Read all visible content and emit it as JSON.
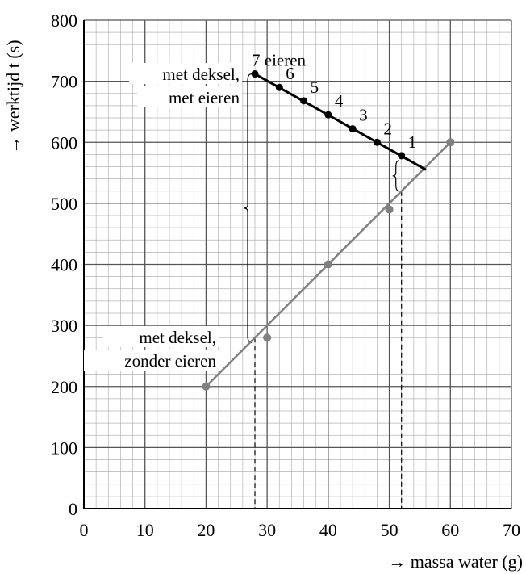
{
  "chart_data": {
    "type": "scatter",
    "xlabel": "massa water (g)",
    "ylabel": "werktijd t (s)",
    "xlim": [
      0,
      70
    ],
    "ylim": [
      0,
      800
    ],
    "x_ticks": [
      "0",
      "10",
      "20",
      "30",
      "40",
      "50",
      "60",
      "70"
    ],
    "y_ticks": [
      "0",
      "100",
      "200",
      "300",
      "400",
      "500",
      "600",
      "700",
      "800"
    ],
    "grid": "on (major every 10 g / 100 s, minor every 2 g / 20 s)",
    "series": [
      {
        "name": "met deksel, met eieren",
        "color": "#000000",
        "x": [
          28,
          32,
          36,
          40,
          44,
          48,
          52
        ],
        "y": [
          712,
          690,
          668,
          645,
          622,
          600,
          578
        ],
        "point_labels": [
          "7 eieren",
          "6",
          "5",
          "4",
          "3",
          "2",
          "1"
        ],
        "fit_line": {
          "x": [
            28,
            56
          ],
          "y": [
            712,
            555
          ]
        }
      },
      {
        "name": "met deksel, zonder eieren",
        "color": "#808080",
        "x": [
          20,
          30,
          40,
          50,
          60
        ],
        "y": [
          200,
          280,
          400,
          490,
          600
        ],
        "fit_line": {
          "x": [
            20,
            60
          ],
          "y": [
            200,
            600
          ]
        }
      }
    ],
    "annotations": {
      "dashed_verticals_x": [
        28,
        52
      ],
      "large_brace": {
        "x": 28,
        "y_from": 272,
        "y_to": 712
      },
      "small_brace": {
        "x": 52,
        "y_from": 520,
        "y_to": 578
      }
    }
  }
}
